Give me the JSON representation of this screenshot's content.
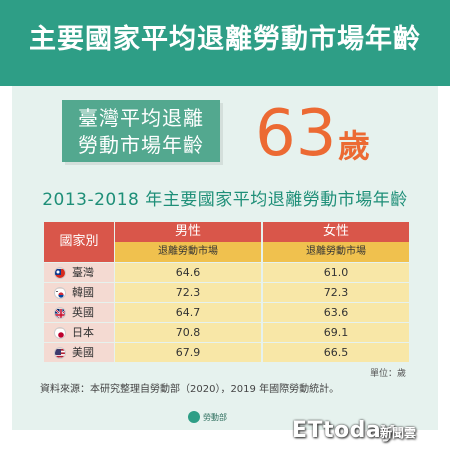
{
  "header": {
    "title": "主要國家平均退離勞動市場年齡"
  },
  "highlight": {
    "label_line1": "臺灣平均退離",
    "label_line2": "勞動市場年齡",
    "value": "63",
    "unit": "歲"
  },
  "footer": {
    "unit_note": "單位：歲",
    "source": "資料來源：本研究整理自勞動部（2020），2019 年國際勞動統計。",
    "ministry_logo_text": "勞動部",
    "watermark": "ETtoday",
    "watermark_cn": "新聞雲"
  },
  "colors": {
    "header_bg": "#2e9e86",
    "panel_bg": "#e6f2ee",
    "badge_bg": "#53a88f",
    "accent_orange": "#ec6a33",
    "table_header_red": "#d9564a",
    "table_subheader_yellow": "#f0c14e",
    "table_cell_yellow": "#f8e7a7",
    "table_country_pink": "#f4dad2"
  },
  "chart_data": {
    "type": "table",
    "title": "2013-2018 年主要國家平均退離勞動市場年齡",
    "row_header": "國家別",
    "columns": [
      {
        "name": "男性",
        "sub": "退離勞動市場"
      },
      {
        "name": "女性",
        "sub": "退離勞動市場"
      }
    ],
    "rows": [
      {
        "country": "臺灣",
        "flag": "taiwan-flag-icon",
        "male": "64.6",
        "female": "61.0"
      },
      {
        "country": "韓國",
        "flag": "korea-flag-icon",
        "male": "72.3",
        "female": "72.3"
      },
      {
        "country": "英國",
        "flag": "uk-flag-icon",
        "male": "64.7",
        "female": "63.6"
      },
      {
        "country": "日本",
        "flag": "japan-flag-icon",
        "male": "70.8",
        "female": "69.1"
      },
      {
        "country": "美國",
        "flag": "usa-flag-icon",
        "male": "67.9",
        "female": "66.5"
      }
    ],
    "unit": "單位：歲"
  }
}
